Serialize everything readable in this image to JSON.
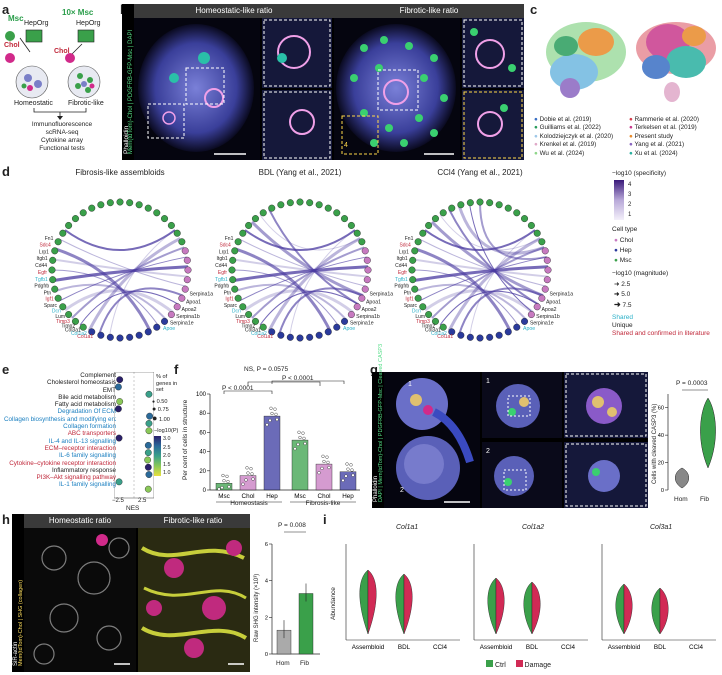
{
  "panels": {
    "a": "a",
    "b": "b",
    "c": "c",
    "d": "d",
    "e": "e",
    "f": "f",
    "g": "g",
    "h": "h",
    "i": "i"
  },
  "a": {
    "msc": "Msc",
    "msc10": "10× Msc",
    "heporg1": "HepOrg",
    "heporg2": "HepOrg",
    "chol1": "Chol",
    "chol2": "Chol",
    "homeostatic": "Homeostatic",
    "fibrotic": "Fibrotic-like",
    "outputs": [
      "Immunofluorescence",
      "scRNA-seq",
      "Cytokine array",
      "Functional tests"
    ]
  },
  "b": {
    "left_title": "Homeostatic-like ratio",
    "right_title": "Fibrotic-like ratio",
    "side_label": "Phalloidin",
    "side_label2": "Mem(tdTom)-Chol | PDGFRB-GFP-Msc | DAPI",
    "inset_num": "4"
  },
  "c": {
    "legend": [
      {
        "label": "Dobie et al. (2019)",
        "color": "#3a6fc4"
      },
      {
        "label": "Rammerie et al. (2020)",
        "color": "#d6404e"
      },
      {
        "label": "Guilliams et al. (2022)",
        "color": "#2a9d5c"
      },
      {
        "label": "Terkelsen et al. (2019)",
        "color": "#c83a8c"
      },
      {
        "label": "Kolodziejczyk et al. (2020)",
        "color": "#9fc8e8"
      },
      {
        "label": "Present study",
        "color": "#e88a2a"
      },
      {
        "label": "Krenkel et al. (2019)",
        "color": "#e0a9c8"
      },
      {
        "label": "Yang et al. (2021)",
        "color": "#8a66c0"
      },
      {
        "label": "Wu et al. (2024)",
        "color": "#8fd68a"
      },
      {
        "label": "Xu et al. (2024)",
        "color": "#2ab0a0"
      }
    ]
  },
  "d": {
    "titles": [
      "Fibrosis-like assembloids",
      "BDL (Yang et al., 2021)",
      "CCl4 (Yang et al., 2021)"
    ],
    "specificity_label": "−log10 (specificity)",
    "spec_ticks": [
      "4",
      "3",
      "2",
      "1"
    ],
    "celltype_title": "Cell type",
    "celltypes": [
      {
        "label": "Chol",
        "color": "#c77ac0"
      },
      {
        "label": "Hep",
        "color": "#2a3a9c"
      },
      {
        "label": "Msc",
        "color": "#3aa04a"
      }
    ],
    "magnitude_title": "−log10 (magnitude)",
    "magnitudes": [
      "2.5",
      "5.0",
      "7.5"
    ],
    "shared": "Shared",
    "unique": "Unique",
    "confirmed": "Shared and confirmed in literature",
    "genes_right": [
      "Serpina1a",
      "Apoa1",
      "Apoa2",
      "Serpina1b",
      "Serpina1e",
      "Apoe"
    ],
    "genes_left": [
      "Col1a1",
      "Col1a2",
      "Col3a1",
      "Timp2",
      "Timp3",
      "Lum",
      "Dcn",
      "Sparc",
      "Igf1",
      "Ptn",
      "Pdgfrb",
      "Tgfb1",
      "Egfr",
      "Cd44",
      "Itgb1",
      "Lrp1",
      "Sdc4",
      "Fn1"
    ]
  },
  "e": {
    "pathways": [
      {
        "label": "Complement",
        "color": "#222222",
        "nes": -2.2
      },
      {
        "label": "Cholesterol homeostasis",
        "color": "#222222",
        "nes": -2.4
      },
      {
        "label": "EMT",
        "color": "#222222",
        "nes": 2.3
      },
      {
        "label": "Bile acid metabolism",
        "color": "#222222",
        "nes": -2.2
      },
      {
        "label": "Fatty acid metabolism",
        "color": "#222222",
        "nes": -2.4
      },
      {
        "label": "Degradation Of ECM",
        "color": "#1a7fc0",
        "nes": 2.4
      },
      {
        "label": "Collagen biosynthesis and modifying enzymes",
        "color": "#1a7fc0",
        "nes": 2.3
      },
      {
        "label": "Collagen formation",
        "color": "#1a7fc0",
        "nes": 2.3
      },
      {
        "label": "ABC transporters",
        "color": "#c0283a",
        "nes": -2.3
      },
      {
        "label": "IL-4 and IL-13 signalling",
        "color": "#1a7fc0",
        "nes": 2.2
      },
      {
        "label": "ECM–receptor interaction",
        "color": "#c0283a",
        "nes": 2.2
      },
      {
        "label": "IL-6 family signalling",
        "color": "#1a7fc0",
        "nes": 2.1
      },
      {
        "label": "Cytokine–cytokine receptor interaction",
        "color": "#c0283a",
        "nes": 2.2
      },
      {
        "label": "Inflammatory response",
        "color": "#222222",
        "nes": 2.3
      },
      {
        "label": "PI3K–Akt signalling pathway",
        "color": "#c0283a",
        "nes": -2.3
      },
      {
        "label": "IL-1 family signalling",
        "color": "#1a7fc0",
        "nes": 2.2
      }
    ],
    "xlabel": "NES",
    "xticks": [
      "−2.5",
      "0",
      "2.5"
    ],
    "size_title": "% of genes in set",
    "sizes": [
      "0.50",
      "0.75",
      "1.00"
    ],
    "p_title": "−log10(P)",
    "p_ticks": [
      "3.0",
      "2.5",
      "2.0",
      "1.5",
      "1.0"
    ]
  },
  "f": {
    "ylabel": "Per cent of cells in structure",
    "yticks": [
      "0",
      "20",
      "40",
      "60",
      "80",
      "100"
    ],
    "ns_label": "NS, P = 0.0575",
    "p1": "P < 0.0001",
    "p2": "P < 0.0001",
    "groups": [
      "Homeostasis",
      "Fibrosis-like"
    ],
    "chart_data": {
      "type": "bar",
      "categories": [
        "Msc",
        "Chol",
        "Hep",
        "Msc",
        "Chol",
        "Hep"
      ],
      "values": [
        7,
        15,
        77,
        52,
        27,
        19
      ],
      "ylim": [
        0,
        100
      ]
    }
  },
  "g": {
    "side_label": "Phalloidin",
    "side_label2": "DAPI | Mem(tdTom)-Chol | PDGFRB-GFP-Msc | Cleaved CASP3",
    "inset1": "1",
    "inset2": "2",
    "ylabel": "Cells with cleaved CASP3 (%)",
    "p": "P = 0.0003",
    "xticks": [
      "Hom",
      "Fib"
    ],
    "yticks": [
      "0",
      "20",
      "40",
      "60"
    ]
  },
  "h": {
    "left_title": "Homeostatic ratio",
    "right_title": "Fibrotic-like ratio",
    "side_label": "SiR-actin",
    "side_label2": "Mem(tdTom)-Chol | SHG (collagen)",
    "p": "P = 0.008",
    "ylabel": "Raw SHG intensity (×10³)",
    "xticks": [
      "Hom",
      "Fib"
    ],
    "yticks": [
      "0",
      "2",
      "4",
      "6"
    ],
    "chart_data": {
      "type": "bar",
      "categories": [
        "Hom",
        "Fib"
      ],
      "values": [
        1.3,
        3.3
      ],
      "ylim": [
        0,
        6
      ]
    }
  },
  "i": {
    "genes": [
      "Col1a1",
      "Col1a2",
      "Col3a1"
    ],
    "xticks": [
      "Assembloid",
      "BDL",
      "CCl4"
    ],
    "ylabel": "Abundance",
    "legend": [
      {
        "label": "Ctrl",
        "color": "#3aa04a"
      },
      {
        "label": "Damage",
        "color": "#d12a55"
      }
    ]
  }
}
